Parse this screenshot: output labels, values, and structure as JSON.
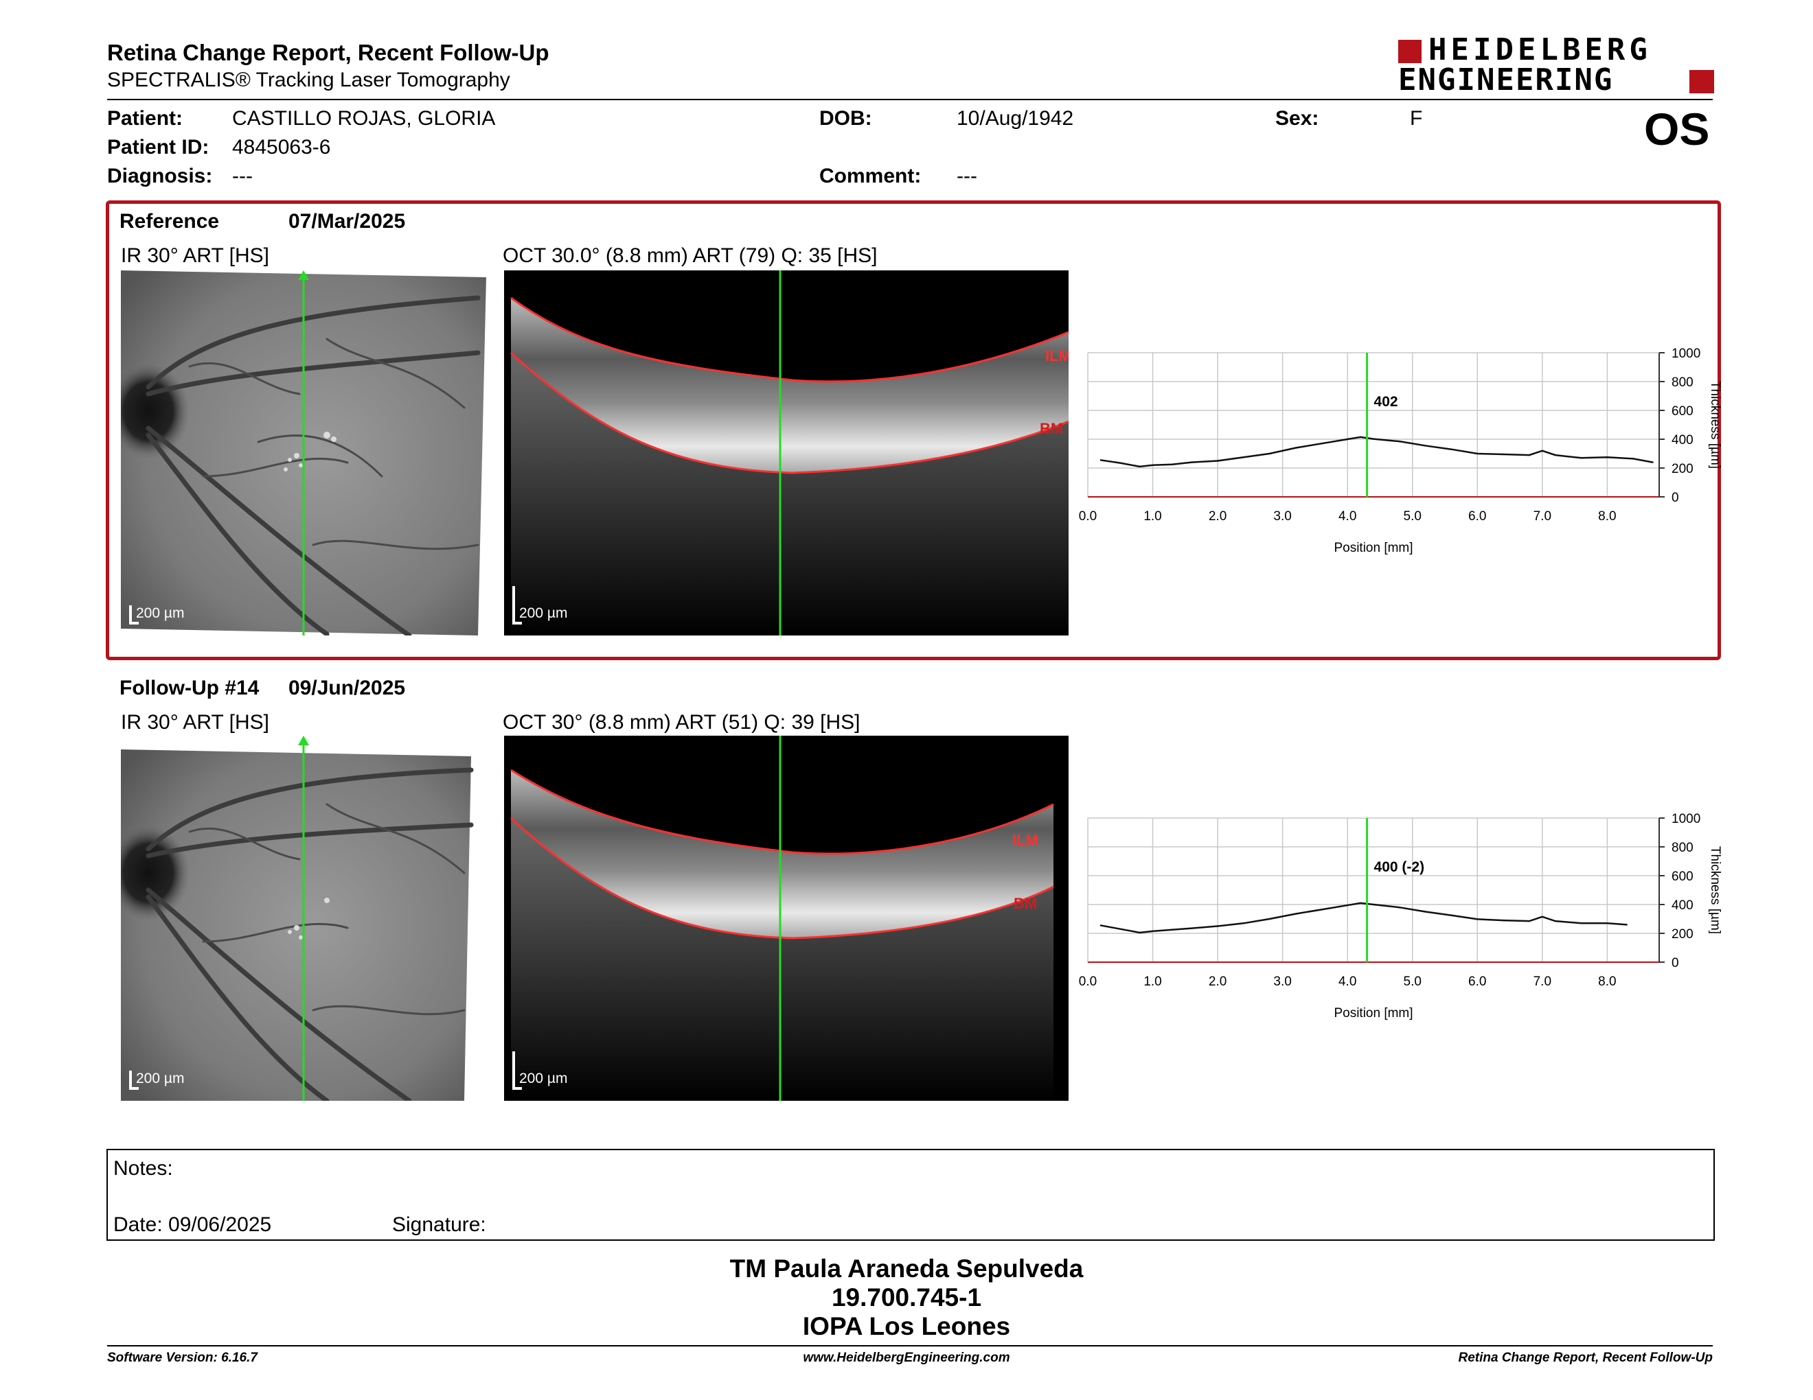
{
  "header": {
    "title": "Retina Change Report, Recent Follow-Up",
    "subtitle": "SPECTRALIS® Tracking Laser Tomography",
    "logo_line1": "HEIDELBERG",
    "logo_line2": "ENGINEERING",
    "eye": "OS"
  },
  "patient": {
    "patient_label": "Patient:",
    "patient_value": "CASTILLO ROJAS, GLORIA",
    "id_label": "Patient ID:",
    "id_value": "4845063-6",
    "diagnosis_label": "Diagnosis:",
    "diagnosis_value": "---",
    "dob_label": "DOB:",
    "dob_value": "10/Aug/1942",
    "comment_label": "Comment:",
    "comment_value": "---",
    "sex_label": "Sex:",
    "sex_value": "F"
  },
  "reference": {
    "label": "Reference",
    "date": "07/Mar/2025",
    "ir_caption": "IR 30° ART [HS]",
    "oct_caption": "OCT 30.0° (8.8 mm) ART (79) Q: 35 [HS]",
    "scale": "200 µm",
    "ilm": "ILM",
    "bm": "BM"
  },
  "followup": {
    "label": "Follow-Up #14",
    "date": "09/Jun/2025",
    "ir_caption": "IR 30° ART [HS]",
    "oct_caption": "OCT 30° (8.8 mm) ART (51) Q: 39 [HS]",
    "scale": "200 µm",
    "ilm": "ILM",
    "bm": "BM"
  },
  "notes": {
    "notes_label": "Notes:",
    "date_label": "Date: 09/06/2025",
    "signature_label": "Signature:"
  },
  "signature_block": {
    "name": "TM Paula Araneda Sepulveda",
    "rut": "19.700.745-1",
    "institution": "IOPA Los Leones"
  },
  "footer": {
    "software": "Software Version: 6.16.7",
    "website": "www.HeidelbergEngineering.com",
    "report": "Retina Change Report, Recent Follow-Up"
  },
  "colors": {
    "accent_red": "#b5121b",
    "scan_green": "#22dd22",
    "segment_red": "#ff3030"
  },
  "chart_data": [
    {
      "type": "line",
      "xlabel": "Position [mm]",
      "ylabel": "Thickness [µm]",
      "xlim": [
        0,
        8.8
      ],
      "ylim": [
        0,
        1000
      ],
      "xticks": [
        "0.0",
        "1.0",
        "2.0",
        "3.0",
        "4.0",
        "5.0",
        "6.0",
        "7.0",
        "8.0"
      ],
      "yticks": [
        "0",
        "200",
        "400",
        "600",
        "800",
        "1000"
      ],
      "marker_position": 4.3,
      "marker_label": "402",
      "grid": true,
      "series": [
        {
          "x": [
            0.2,
            0.5,
            0.8,
            1.0,
            1.3,
            1.6,
            2.0,
            2.4,
            2.8,
            3.2,
            3.6,
            4.0,
            4.2,
            4.4,
            4.8,
            5.2,
            5.6,
            6.0,
            6.4,
            6.8,
            7.0,
            7.2,
            7.6,
            8.0,
            8.4,
            8.7
          ],
          "values": [
            255,
            235,
            210,
            220,
            225,
            240,
            250,
            275,
            300,
            340,
            370,
            400,
            415,
            402,
            385,
            355,
            330,
            300,
            295,
            290,
            320,
            290,
            270,
            275,
            265,
            240
          ]
        }
      ]
    },
    {
      "type": "line",
      "xlabel": "Position [mm]",
      "ylabel": "Thickness [µm]",
      "xlim": [
        0,
        8.8
      ],
      "ylim": [
        0,
        1000
      ],
      "xticks": [
        "0.0",
        "1.0",
        "2.0",
        "3.0",
        "4.0",
        "5.0",
        "6.0",
        "7.0",
        "8.0"
      ],
      "yticks": [
        "0",
        "200",
        "400",
        "600",
        "800",
        "1000"
      ],
      "marker_position": 4.3,
      "marker_label": "400 (-2)",
      "grid": true,
      "series": [
        {
          "x": [
            0.2,
            0.5,
            0.8,
            1.0,
            1.3,
            1.6,
            2.0,
            2.4,
            2.8,
            3.2,
            3.6,
            4.0,
            4.2,
            4.4,
            4.8,
            5.2,
            5.6,
            6.0,
            6.4,
            6.8,
            7.0,
            7.2,
            7.6,
            8.0,
            8.3
          ],
          "values": [
            255,
            230,
            205,
            215,
            225,
            235,
            250,
            270,
            300,
            335,
            365,
            395,
            410,
            400,
            380,
            350,
            325,
            298,
            290,
            285,
            315,
            285,
            270,
            270,
            260
          ]
        }
      ]
    }
  ]
}
